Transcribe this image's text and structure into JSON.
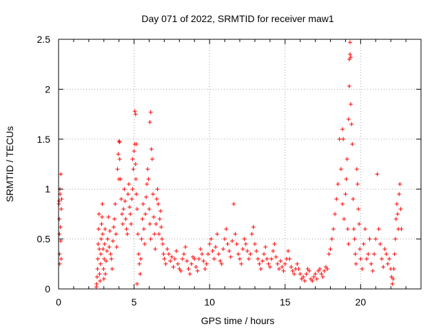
{
  "chart_data": {
    "type": "scatter",
    "title": "Day 071 of 2022, SRMTID for receiver maw1",
    "xlabel": "GPS time / hours",
    "ylabel": "SRMTID / TECUs",
    "xlim": [
      0,
      24
    ],
    "ylim": [
      0,
      2.5
    ],
    "xticks": [
      0,
      5,
      10,
      15,
      20
    ],
    "xtick_labels": [
      "0",
      "5",
      "10",
      "15",
      "20"
    ],
    "yticks": [
      0,
      0.5,
      1,
      1.5,
      2,
      2.5
    ],
    "ytick_labels": [
      "0",
      "0.5",
      "1",
      "1.5",
      "2",
      "2.5"
    ],
    "grid": true,
    "marker": "plus",
    "color": "#ff0000",
    "series": [
      {
        "name": "SRMTID",
        "x": [
          0.02,
          0.04,
          0.05,
          0.06,
          0.07,
          0.08,
          0.09,
          0.1,
          0.12,
          0.14,
          0.15,
          0.17,
          0.18,
          0.2,
          2.5,
          2.52,
          2.55,
          2.58,
          2.6,
          2.62,
          2.65,
          2.68,
          2.7,
          2.72,
          2.75,
          2.78,
          2.8,
          2.82,
          2.85,
          2.88,
          2.9,
          2.92,
          2.95,
          2.98,
          3.0,
          3.02,
          3.05,
          3.08,
          3.1,
          3.15,
          3.2,
          3.25,
          3.3,
          3.35,
          3.4,
          3.45,
          3.5,
          3.55,
          3.6,
          3.65,
          3.7,
          3.75,
          3.8,
          3.85,
          3.9,
          3.95,
          4.0,
          4.05,
          4.1,
          4.15,
          4.2,
          4.25,
          4.3,
          4.35,
          4.4,
          4.45,
          4.5,
          4.55,
          4.6,
          4.65,
          4.7,
          4.75,
          4.8,
          4.85,
          4.9,
          4.95,
          5.0,
          5.05,
          5.1,
          5.12,
          5.15,
          5.2,
          5.25,
          5.3,
          5.35,
          5.4,
          5.45,
          5.5,
          5.55,
          5.6,
          5.65,
          5.7,
          5.75,
          5.8,
          5.85,
          5.9,
          5.95,
          6.0,
          6.05,
          6.1,
          6.15,
          6.2,
          6.25,
          6.3,
          6.35,
          6.4,
          6.45,
          6.5,
          6.55,
          6.6,
          6.65,
          6.7,
          6.75,
          6.8,
          6.85,
          6.9,
          6.95,
          7.0,
          7.1,
          7.2,
          7.3,
          7.4,
          7.5,
          7.6,
          7.7,
          7.8,
          7.9,
          8.0,
          8.1,
          8.2,
          8.3,
          8.4,
          8.5,
          8.6,
          8.7,
          8.8,
          8.9,
          9.0,
          9.1,
          9.2,
          9.3,
          9.4,
          9.5,
          9.6,
          9.7,
          9.8,
          9.9,
          10.0,
          10.1,
          10.2,
          10.3,
          10.4,
          10.5,
          10.6,
          10.7,
          10.8,
          10.9,
          11.0,
          11.1,
          11.2,
          11.3,
          11.4,
          11.5,
          11.6,
          11.7,
          11.8,
          11.9,
          12.0,
          12.1,
          12.2,
          12.3,
          12.4,
          12.5,
          12.6,
          12.7,
          12.8,
          12.9,
          13.0,
          13.1,
          13.2,
          13.3,
          13.4,
          13.5,
          13.6,
          13.7,
          13.8,
          13.9,
          14.0,
          14.1,
          14.2,
          14.3,
          14.4,
          14.5,
          14.6,
          14.7,
          14.8,
          14.9,
          15.0,
          15.1,
          15.2,
          15.3,
          15.4,
          15.5,
          15.6,
          15.7,
          15.8,
          15.9,
          16.0,
          16.1,
          16.2,
          16.3,
          16.4,
          16.5,
          16.6,
          16.7,
          16.8,
          16.9,
          17.0,
          17.1,
          17.2,
          17.3,
          17.4,
          17.5,
          17.6,
          17.7,
          17.8,
          17.9,
          18.0,
          18.1,
          18.2,
          18.3,
          18.4,
          18.5,
          18.6,
          18.7,
          18.8,
          18.9,
          19.0,
          19.05,
          19.1,
          19.15,
          19.2,
          19.25,
          19.3,
          19.35,
          19.4,
          19.45,
          19.5,
          19.55,
          19.6,
          19.65,
          19.7,
          19.75,
          19.8,
          19.85,
          19.9,
          19.95,
          20.0,
          20.1,
          20.2,
          20.3,
          20.4,
          20.5,
          20.6,
          20.7,
          20.8,
          20.9,
          21.0,
          21.1,
          21.2,
          21.3,
          21.4,
          21.5,
          21.6,
          21.7,
          21.8,
          21.9,
          22.0,
          22.05,
          22.1,
          22.15,
          22.2,
          22.25,
          22.3,
          22.35,
          22.4,
          22.45,
          22.5,
          22.55,
          22.6,
          22.65,
          22.7,
          5.05,
          5.1,
          5.15,
          6.05,
          6.1,
          5.2,
          19.3,
          19.35,
          19.25,
          19.2,
          18.8,
          18.85,
          4.9,
          4.0,
          4.05
        ],
        "y": [
          0.85,
          0.88,
          0.7,
          0.55,
          0.35,
          0.25,
          1.0,
          0.95,
          0.62,
          0.48,
          1.15,
          0.3,
          0.8,
          0.9,
          0.02,
          0.05,
          0.12,
          0.2,
          0.3,
          0.45,
          0.6,
          0.75,
          0.4,
          0.15,
          0.08,
          0.25,
          0.35,
          0.5,
          0.65,
          0.72,
          0.85,
          0.55,
          0.4,
          0.2,
          0.1,
          0.3,
          0.45,
          0.6,
          0.15,
          0.28,
          0.38,
          0.5,
          0.72,
          0.42,
          0.58,
          0.35,
          0.3,
          0.2,
          0.48,
          0.62,
          0.7,
          0.85,
          0.55,
          0.42,
          1.2,
          1.35,
          1.48,
          1.3,
          1.1,
          0.9,
          0.75,
          0.65,
          0.8,
          1.0,
          0.88,
          0.7,
          0.6,
          0.55,
          0.95,
          1.05,
          0.82,
          0.75,
          0.65,
          0.9,
          1.0,
          1.2,
          1.38,
          1.45,
          1.25,
          1.1,
          0.95,
          0.8,
          0.55,
          0.35,
          0.25,
          0.15,
          0.3,
          0.5,
          0.7,
          0.85,
          0.6,
          0.45,
          0.75,
          0.92,
          1.05,
          1.2,
          1.1,
          0.8,
          0.65,
          0.5,
          1.4,
          1.3,
          0.95,
          0.72,
          0.55,
          0.4,
          0.65,
          0.9,
          1.0,
          0.85,
          0.55,
          0.7,
          0.78,
          0.62,
          0.5,
          0.45,
          0.35,
          0.3,
          0.25,
          0.4,
          0.35,
          0.28,
          0.32,
          0.22,
          0.3,
          0.38,
          0.25,
          0.2,
          0.18,
          0.3,
          0.35,
          0.42,
          0.28,
          0.2,
          0.15,
          0.25,
          0.32,
          0.3,
          0.22,
          0.18,
          0.3,
          0.4,
          0.35,
          0.28,
          0.2,
          0.25,
          0.35,
          0.45,
          0.5,
          0.38,
          0.3,
          0.42,
          0.55,
          0.35,
          0.28,
          0.25,
          0.4,
          0.5,
          0.6,
          0.45,
          0.38,
          0.32,
          0.48,
          0.85,
          0.55,
          0.45,
          0.35,
          0.3,
          0.25,
          0.4,
          0.5,
          0.45,
          0.38,
          0.3,
          0.35,
          0.55,
          0.62,
          0.45,
          0.38,
          0.3,
          0.25,
          0.2,
          0.28,
          0.35,
          0.42,
          0.3,
          0.25,
          0.22,
          0.3,
          0.38,
          0.45,
          0.32,
          0.25,
          0.2,
          0.28,
          0.22,
          0.18,
          0.25,
          0.3,
          0.38,
          0.3,
          0.22,
          0.18,
          0.15,
          0.2,
          0.25,
          0.2,
          0.15,
          0.1,
          0.12,
          0.08,
          0.15,
          0.2,
          0.18,
          0.1,
          0.08,
          0.12,
          0.15,
          0.1,
          0.18,
          0.2,
          0.15,
          0.12,
          0.18,
          0.22,
          0.2,
          0.35,
          0.4,
          0.5,
          0.6,
          0.75,
          0.9,
          1.05,
          1.5,
          1.2,
          0.85,
          0.7,
          0.95,
          1.1,
          1.3,
          0.6,
          0.45,
          2.3,
          2.35,
          1.85,
          1.65,
          1.45,
          0.9,
          0.6,
          0.5,
          0.35,
          0.25,
          1.2,
          1.05,
          0.8,
          0.65,
          0.4,
          0.3,
          0.2,
          0.45,
          0.6,
          0.3,
          0.35,
          0.5,
          0.25,
          0.18,
          0.35,
          0.5,
          1.15,
          0.6,
          0.45,
          0.3,
          0.22,
          0.4,
          0.35,
          0.25,
          0.3,
          0.2,
          0.12,
          0.05,
          0.1,
          0.2,
          0.35,
          0.5,
          0.7,
          0.85,
          0.75,
          0.6,
          0.95,
          1.05,
          0.8,
          0.6,
          1.78,
          1.75,
          1.45,
          1.67,
          1.77,
          0.05,
          2.47,
          2.32,
          2.03,
          1.7,
          1.6,
          1.5,
          1.3,
          1.1,
          1.47
        ]
      }
    ]
  }
}
